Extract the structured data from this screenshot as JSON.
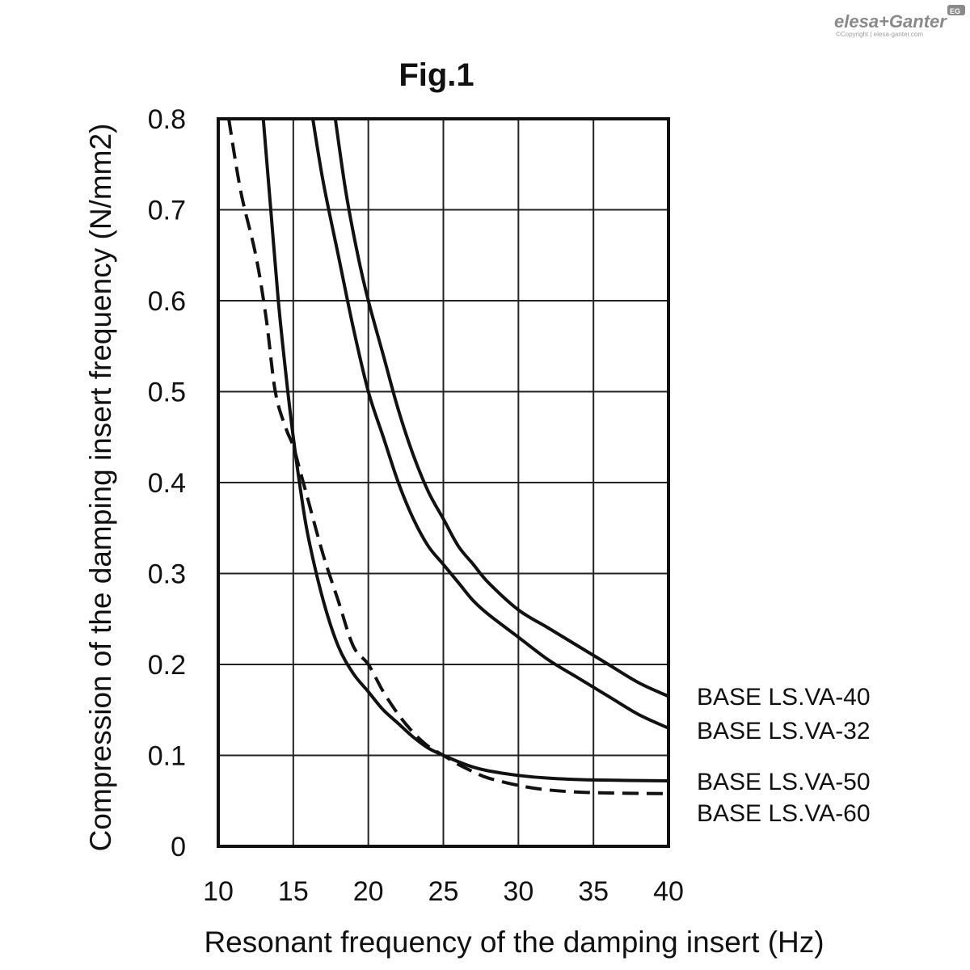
{
  "logo": {
    "brand": "elesa+Ganter",
    "badge": "EG",
    "copyright": "©Copyright | elesa-ganter.com"
  },
  "colors": {
    "ink": "#111111",
    "grid": "#222222",
    "logo": "#8a8a8a"
  },
  "chart_data": {
    "type": "line",
    "title": "Fig.1",
    "xlabel": "Resonant frequency of the damping insert (Hz)",
    "ylabel": "Compression of the damping insert frequency (N/mm2)",
    "xlim": [
      10,
      40
    ],
    "ylim": [
      0,
      0.8
    ],
    "xticks": [
      10,
      15,
      20,
      25,
      30,
      35,
      40
    ],
    "yticks": [
      0,
      0.1,
      0.2,
      0.3,
      0.4,
      0.5,
      0.6,
      0.7,
      0.8
    ],
    "ytick_labels": [
      "0",
      "0.1",
      "0.2",
      "0.3",
      "0.4",
      "0.5",
      "0.6",
      "0.7",
      "0.8"
    ],
    "xtick_labels": [
      "10",
      "15",
      "20",
      "25",
      "30",
      "35",
      "40"
    ],
    "grid": true,
    "legend_placement": "right of plot, beside line ends",
    "series": [
      {
        "name": "BASE LS.VA-40",
        "style": "solid",
        "points": [
          [
            17.8,
            0.8
          ],
          [
            18.5,
            0.72
          ],
          [
            19.3,
            0.65
          ],
          [
            20,
            0.6
          ],
          [
            21,
            0.54
          ],
          [
            22,
            0.48
          ],
          [
            23,
            0.43
          ],
          [
            24,
            0.39
          ],
          [
            25,
            0.36
          ],
          [
            26,
            0.33
          ],
          [
            27,
            0.31
          ],
          [
            28,
            0.29
          ],
          [
            30,
            0.26
          ],
          [
            32,
            0.24
          ],
          [
            34,
            0.22
          ],
          [
            36,
            0.2
          ],
          [
            38,
            0.18
          ],
          [
            40,
            0.165
          ]
        ]
      },
      {
        "name": "BASE LS.VA-32",
        "style": "solid",
        "points": [
          [
            16.3,
            0.8
          ],
          [
            17,
            0.73
          ],
          [
            18,
            0.65
          ],
          [
            19,
            0.57
          ],
          [
            20,
            0.5
          ],
          [
            21,
            0.45
          ],
          [
            22,
            0.4
          ],
          [
            23,
            0.36
          ],
          [
            24,
            0.33
          ],
          [
            25,
            0.31
          ],
          [
            26,
            0.29
          ],
          [
            27,
            0.27
          ],
          [
            28,
            0.255
          ],
          [
            30,
            0.23
          ],
          [
            32,
            0.205
          ],
          [
            34,
            0.185
          ],
          [
            36,
            0.165
          ],
          [
            38,
            0.145
          ],
          [
            40,
            0.13
          ]
        ]
      },
      {
        "name": "BASE LS.VA-50",
        "style": "solid",
        "points": [
          [
            13,
            0.8
          ],
          [
            13.5,
            0.7
          ],
          [
            14,
            0.6
          ],
          [
            14.5,
            0.52
          ],
          [
            15,
            0.45
          ],
          [
            15.5,
            0.39
          ],
          [
            16,
            0.34
          ],
          [
            17,
            0.27
          ],
          [
            18,
            0.22
          ],
          [
            19,
            0.19
          ],
          [
            20,
            0.17
          ],
          [
            21,
            0.15
          ],
          [
            22,
            0.135
          ],
          [
            23,
            0.12
          ],
          [
            24,
            0.108
          ],
          [
            25,
            0.1
          ],
          [
            26,
            0.093
          ],
          [
            27,
            0.087
          ],
          [
            28,
            0.083
          ],
          [
            30,
            0.078
          ],
          [
            32,
            0.075
          ],
          [
            35,
            0.073
          ],
          [
            40,
            0.072
          ]
        ]
      },
      {
        "name": "BASE LS.VA-60",
        "style": "dashed",
        "points": [
          [
            10.7,
            0.8
          ],
          [
            11.5,
            0.72
          ],
          [
            12.5,
            0.65
          ],
          [
            13.2,
            0.58
          ],
          [
            13.8,
            0.5
          ],
          [
            14.5,
            0.46
          ],
          [
            15,
            0.44
          ],
          [
            15.5,
            0.41
          ],
          [
            16,
            0.38
          ],
          [
            17,
            0.32
          ],
          [
            18,
            0.27
          ],
          [
            19,
            0.22
          ],
          [
            20,
            0.2
          ],
          [
            21,
            0.17
          ],
          [
            22,
            0.145
          ],
          [
            23,
            0.125
          ],
          [
            24,
            0.11
          ],
          [
            25,
            0.1
          ],
          [
            26,
            0.09
          ],
          [
            27,
            0.082
          ],
          [
            28,
            0.075
          ],
          [
            30,
            0.067
          ],
          [
            32,
            0.062
          ],
          [
            35,
            0.059
          ],
          [
            40,
            0.058
          ]
        ]
      }
    ]
  }
}
